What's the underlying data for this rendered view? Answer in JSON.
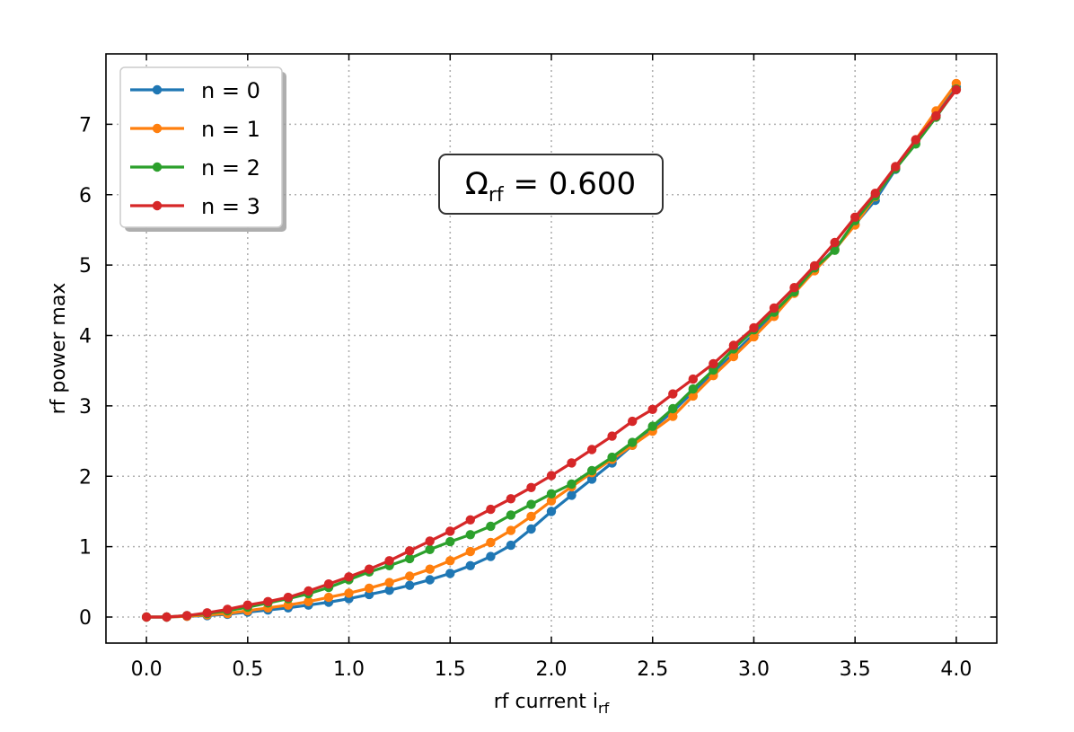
{
  "chart_data": {
    "type": "line",
    "title": "",
    "xlabel": "rf current i",
    "xlabel_sub": "rf",
    "ylabel": "rf power max",
    "xlim": [
      -0.2,
      4.2
    ],
    "ylim": [
      -0.37,
      8.0
    ],
    "xticks": [
      0.0,
      0.5,
      1.0,
      1.5,
      2.0,
      2.5,
      3.0,
      3.5,
      4.0
    ],
    "xtick_labels": [
      "0.0",
      "0.5",
      "1.0",
      "1.5",
      "2.0",
      "2.5",
      "3.0",
      "3.5",
      "4.0"
    ],
    "yticks": [
      0,
      1,
      2,
      3,
      4,
      5,
      6,
      7
    ],
    "ytick_labels": [
      "0",
      "1",
      "2",
      "3",
      "4",
      "5",
      "6",
      "7"
    ],
    "grid": true,
    "legend_position": "top-left",
    "annotation": {
      "main": "Ω",
      "sub": "rf",
      "rest": " = 0.600"
    },
    "x": [
      0.0,
      0.1,
      0.2,
      0.3,
      0.4,
      0.5,
      0.6,
      0.7,
      0.8,
      0.9,
      1.0,
      1.1,
      1.2,
      1.3,
      1.4,
      1.5,
      1.6,
      1.7,
      1.8,
      1.9,
      2.0,
      2.1,
      2.2,
      2.3,
      2.4,
      2.5,
      2.6,
      2.7,
      2.8,
      2.9,
      3.0,
      3.1,
      3.2,
      3.3,
      3.4,
      3.5,
      3.6,
      3.7,
      3.8,
      3.9,
      4.0
    ],
    "series": [
      {
        "name": "n = 0",
        "color": "#1f77b4",
        "values": [
          0.0,
          0.0,
          0.01,
          0.02,
          0.04,
          0.07,
          0.1,
          0.13,
          0.17,
          0.21,
          0.26,
          0.32,
          0.38,
          0.45,
          0.53,
          0.62,
          0.73,
          0.86,
          1.02,
          1.25,
          1.5,
          1.73,
          1.96,
          2.19,
          2.44,
          2.68,
          2.92,
          3.2,
          3.47,
          3.74,
          4.02,
          4.31,
          4.63,
          4.94,
          5.23,
          5.58,
          5.92,
          6.36,
          6.77,
          7.13,
          7.53
        ]
      },
      {
        "name": "n = 1",
        "color": "#ff7f0e",
        "values": [
          0.0,
          0.0,
          0.01,
          0.03,
          0.05,
          0.09,
          0.13,
          0.17,
          0.22,
          0.28,
          0.34,
          0.41,
          0.49,
          0.58,
          0.68,
          0.8,
          0.93,
          1.06,
          1.23,
          1.43,
          1.65,
          1.85,
          2.05,
          2.24,
          2.44,
          2.64,
          2.85,
          3.14,
          3.43,
          3.7,
          3.98,
          4.27,
          4.6,
          4.92,
          5.22,
          5.57,
          5.97,
          6.38,
          6.78,
          7.19,
          7.58
        ]
      },
      {
        "name": "n = 2",
        "color": "#2ca02c",
        "values": [
          0.0,
          0.0,
          0.02,
          0.05,
          0.09,
          0.14,
          0.2,
          0.26,
          0.33,
          0.42,
          0.53,
          0.64,
          0.73,
          0.83,
          0.96,
          1.07,
          1.17,
          1.29,
          1.45,
          1.6,
          1.75,
          1.89,
          2.08,
          2.27,
          2.48,
          2.71,
          2.96,
          3.24,
          3.51,
          3.81,
          4.08,
          4.33,
          4.62,
          4.96,
          5.21,
          5.63,
          5.98,
          6.37,
          6.72,
          7.1,
          7.5
        ]
      },
      {
        "name": "n = 3",
        "color": "#d62728",
        "values": [
          0.0,
          0.0,
          0.02,
          0.06,
          0.11,
          0.17,
          0.22,
          0.28,
          0.37,
          0.47,
          0.57,
          0.68,
          0.8,
          0.94,
          1.08,
          1.22,
          1.38,
          1.53,
          1.68,
          1.84,
          2.01,
          2.19,
          2.38,
          2.57,
          2.78,
          2.95,
          3.17,
          3.38,
          3.6,
          3.86,
          4.11,
          4.39,
          4.68,
          4.99,
          5.32,
          5.68,
          6.02,
          6.4,
          6.78,
          7.12,
          7.49
        ]
      }
    ]
  }
}
